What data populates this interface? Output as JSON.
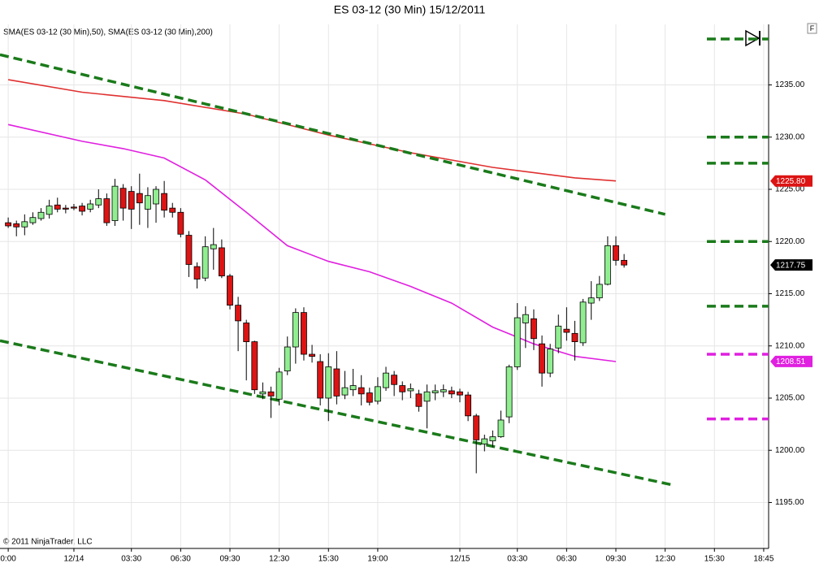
{
  "chart_data": {
    "type": "candlestick",
    "title": "ES 03-12 (30 Min)  15/12/2011",
    "indicator_label": "SMA(ES 03-12 (30 Min),50), SMA(ES 03-12 (30 Min),200)",
    "copyright": "© 2011 NinjaTrader, LLC",
    "panel_button": "F",
    "up_color": "#90ee90",
    "down_color": "#dc1414",
    "grid": true,
    "xlim": [
      -1,
      92.6
    ],
    "ylim": [
      1190.6,
      1240.8
    ],
    "xticks": [
      {
        "value": 0,
        "label": "0:00"
      },
      {
        "value": 8,
        "label": "12/14"
      },
      {
        "value": 15,
        "label": "03:30"
      },
      {
        "value": 21,
        "label": "06:30"
      },
      {
        "value": 27,
        "label": "09:30"
      },
      {
        "value": 33,
        "label": "12:30"
      },
      {
        "value": 39,
        "label": "15:30"
      },
      {
        "value": 45,
        "label": "19:00"
      },
      {
        "value": 55,
        "label": "12/15"
      },
      {
        "value": 62,
        "label": "03:30"
      },
      {
        "value": 68,
        "label": "06:30"
      },
      {
        "value": 74,
        "label": "09:30"
      },
      {
        "value": 80,
        "label": "12:30"
      },
      {
        "value": 86,
        "label": "15:30"
      },
      {
        "value": 92,
        "label": "18:45"
      }
    ],
    "yticks": [
      {
        "value": 1195,
        "label": "1195.00"
      },
      {
        "value": 1200,
        "label": "1200.00"
      },
      {
        "value": 1205,
        "label": "1205.00"
      },
      {
        "value": 1210,
        "label": "1210.00"
      },
      {
        "value": 1215,
        "label": "1215.00"
      },
      {
        "value": 1220,
        "label": "1220.00"
      },
      {
        "value": 1225,
        "label": "1225.00"
      },
      {
        "value": 1230,
        "label": "1230.00"
      },
      {
        "value": 1235,
        "label": "1235.00"
      }
    ],
    "x": [
      0,
      1,
      2,
      3,
      4,
      5,
      6,
      7,
      8,
      9,
      10,
      11,
      12,
      13,
      14,
      15,
      16,
      17,
      18,
      19,
      20,
      21,
      22,
      23,
      24,
      25,
      26,
      27,
      28,
      29,
      30,
      31,
      32,
      33,
      34,
      35,
      36,
      37,
      38,
      39,
      40,
      41,
      42,
      43,
      44,
      45,
      46,
      47,
      48,
      49,
      50,
      51,
      52,
      53,
      54,
      55,
      56,
      57,
      58,
      59,
      60,
      61,
      62,
      63,
      64,
      65,
      66,
      67,
      68,
      69,
      70,
      71,
      72,
      73,
      74,
      75
    ],
    "open": [
      1221.8,
      1221.7,
      1221.4,
      1221.8,
      1222.2,
      1222.6,
      1223.5,
      1223.2,
      1223.3,
      1223.4,
      1223.1,
      1223.5,
      1224.1,
      1222,
      1225.1,
      1224.8,
      1224.6,
      1223.1,
      1223.6,
      1224.6,
      1223.2,
      1222.8,
      1220.6,
      1217.6,
      1216.5,
      1219.3,
      1219.4,
      1216.7,
      1213.9,
      1212.2,
      1210.4,
      1205.4,
      1205.6,
      1204.9,
      1207.6,
      1209.9,
      1213.2,
      1209.2,
      1208.5,
      1205,
      1207.8,
      1205.3,
      1205.8,
      1206,
      1205.5,
      1204.7,
      1206,
      1207.2,
      1206.2,
      1205.7,
      1205.4,
      1204.7,
      1205.5,
      1205.6,
      1205.7,
      1205.6,
      1205.3,
      1203.3,
      1200.6,
      1200.9,
      1201.3,
      1203.2,
      1208,
      1212.2,
      1212.6,
      1210.2,
      1207.4,
      1209.8,
      1211.6,
      1211.2,
      1210.3,
      1214.1,
      1214.6,
      1215.9,
      1219.6,
      1218.2
    ],
    "high": [
      1222.3,
      1222,
      1222.6,
      1222.8,
      1223.2,
      1224,
      1224.2,
      1223.5,
      1223.6,
      1223.7,
      1224,
      1225,
      1224.6,
      1226,
      1225.5,
      1225.3,
      1226.5,
      1225.2,
      1225.3,
      1225.8,
      1223.7,
      1223.2,
      1221,
      1218,
      1220.5,
      1221.3,
      1220.2,
      1216.9,
      1214.7,
      1212.5,
      1210.5,
      1206.5,
      1206.1,
      1207.9,
      1210.9,
      1213.6,
      1213.7,
      1210.1,
      1209.2,
      1209.3,
      1209.5,
      1207.6,
      1207.8,
      1207.2,
      1206,
      1207,
      1208,
      1207.6,
      1206.6,
      1206.4,
      1205.8,
      1206.3,
      1206.3,
      1206.3,
      1206.1,
      1205.9,
      1205.6,
      1203.5,
      1201.5,
      1201.9,
      1203.8,
      1208.2,
      1214.1,
      1213.8,
      1213.5,
      1211,
      1210.2,
      1213,
      1213.7,
      1212.4,
      1214.5,
      1216.2,
      1216.7,
      1220.5,
      1220.5,
      1218.8
    ],
    "low": [
      1221.3,
      1220.5,
      1220.6,
      1221.6,
      1222,
      1222.2,
      1222.8,
      1222.7,
      1223,
      1222.5,
      1222.8,
      1223.2,
      1221.5,
      1221.5,
      1222,
      1221.2,
      1221.6,
      1221.3,
      1221.8,
      1222.3,
      1222.3,
      1220.4,
      1216.6,
      1215.5,
      1216.2,
      1217.3,
      1216.5,
      1213.5,
      1209.5,
      1206.7,
      1205.4,
      1204.9,
      1203.1,
      1204.3,
      1207.2,
      1208.3,
      1208.6,
      1208.4,
      1204.3,
      1202.8,
      1204.4,
      1204.9,
      1205.2,
      1204.3,
      1204.3,
      1204.4,
      1205.7,
      1205.2,
      1204.8,
      1205,
      1203.7,
      1202.1,
      1204.8,
      1205.1,
      1205,
      1204.6,
      1202.8,
      1197.8,
      1199.9,
      1200.3,
      1201.2,
      1202.6,
      1207.7,
      1209.8,
      1209.6,
      1206.1,
      1207,
      1209.3,
      1210.5,
      1208.6,
      1210,
      1212.5,
      1214.3,
      1215.8,
      1217.7,
      1217.5
    ],
    "close": [
      1221.5,
      1221.4,
      1221.9,
      1222.3,
      1222.8,
      1223.4,
      1223.1,
      1223.1,
      1223.2,
      1222.9,
      1223.6,
      1224.1,
      1221.8,
      1225.3,
      1223.2,
      1223.1,
      1223.7,
      1224.4,
      1225,
      1223,
      1222.8,
      1220.7,
      1217.8,
      1216.4,
      1219.5,
      1219.7,
      1216.7,
      1213.9,
      1212.4,
      1210.4,
      1205.8,
      1205.6,
      1205.2,
      1207.5,
      1209.9,
      1213.2,
      1209.2,
      1209,
      1205,
      1208,
      1205.2,
      1206,
      1206.2,
      1205.4,
      1204.6,
      1206.1,
      1207.4,
      1206.3,
      1205.6,
      1205.9,
      1204.2,
      1205.6,
      1205.7,
      1205.8,
      1205.4,
      1205.3,
      1203.3,
      1201,
      1201.1,
      1201.3,
      1202.9,
      1208,
      1212.7,
      1213,
      1210.7,
      1207.4,
      1209.7,
      1211.9,
      1211.3,
      1210.4,
      1214.2,
      1214.6,
      1215.9,
      1219.6,
      1218.2,
      1217.75
    ],
    "indicators": [
      {
        "color": "#e020e0",
        "x": [
          0,
          9,
          14,
          19,
          24,
          29,
          34,
          39,
          44,
          49,
          54,
          59,
          64,
          69,
          74
        ],
        "values": [
          1231.2,
          1229.6,
          1228.9,
          1228,
          1225.9,
          1222.8,
          1219.6,
          1218.1,
          1217.1,
          1215.7,
          1214.1,
          1211.8,
          1210.2,
          1209,
          1208.5
        ]
      },
      {
        "color": "#e03030",
        "x": [
          0,
          9,
          19,
          29,
          39,
          49,
          59,
          69,
          74
        ],
        "values": [
          1235.5,
          1234.3,
          1233.5,
          1232.2,
          1230.2,
          1228.5,
          1227.1,
          1226.1,
          1225.8
        ]
      }
    ],
    "trend_lines": [
      {
        "color": "#1a7a1a",
        "x": [
          -1,
          80
        ],
        "values": [
          1237.9,
          1222.6
        ]
      },
      {
        "color": "#1a7a1a",
        "x": [
          -1,
          80.8
        ],
        "values": [
          1210.5,
          1196.7
        ]
      }
    ],
    "levels": [
      {
        "value": 1239.4,
        "color": "#1a7a1a"
      },
      {
        "value": 1230,
        "color": "#1a7a1a"
      },
      {
        "value": 1227.5,
        "color": "#1a7a1a"
      },
      {
        "value": 1220,
        "color": "#1a7a1a"
      },
      {
        "value": 1213.8,
        "color": "#1a7a1a"
      },
      {
        "value": 1209.2,
        "color": "#e020e0"
      },
      {
        "value": 1203,
        "color": "#e020e0"
      }
    ],
    "price_markers": [
      {
        "value": 1225.8,
        "label": "1225.80",
        "color": "#dc1414"
      },
      {
        "value": 1217.75,
        "color": "#000000"
      },
      {
        "value": 1208.51,
        "color": "#e020e0"
      }
    ]
  }
}
